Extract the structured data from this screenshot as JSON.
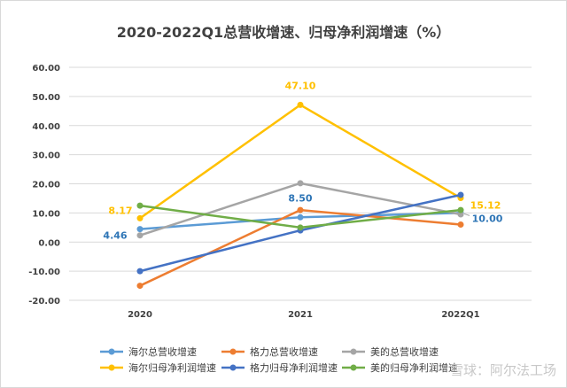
{
  "chart_data": {
    "type": "line",
    "title": "2020-2022Q1总营收增速、归母净利润增速（%）",
    "categories": [
      "2020",
      "2021",
      "2022Q1"
    ],
    "ylim": [
      -20,
      60
    ],
    "yticks": [
      "-20.00",
      "-10.00",
      "0.00",
      "10.00",
      "20.00",
      "30.00",
      "40.00",
      "50.00",
      "60.00"
    ],
    "grid": true,
    "legend_position": "bottom",
    "series": [
      {
        "name": "海尔总营收增速",
        "color": "#5b9bd5",
        "values": [
          4.46,
          8.5,
          10.0
        ]
      },
      {
        "name": "格力总营收增速",
        "color": "#ed7d31",
        "values": [
          -15.0,
          11.0,
          6.0
        ]
      },
      {
        "name": "美的总营收增速",
        "color": "#a5a5a5",
        "values": [
          2.3,
          20.2,
          9.5
        ]
      },
      {
        "name": "海尔归母净利润增速",
        "color": "#ffc000",
        "values": [
          8.17,
          47.1,
          15.12
        ]
      },
      {
        "name": "格力归母净利润增速",
        "color": "#4472c4",
        "values": [
          -10.0,
          4.0,
          16.2
        ]
      },
      {
        "name": "美的归母净利润增速",
        "color": "#70ad47",
        "values": [
          12.5,
          5.0,
          11.0
        ]
      }
    ],
    "annotations": [
      {
        "text": "8.17",
        "series": 3,
        "point": 0,
        "color": "#ffc000"
      },
      {
        "text": "4.46",
        "series": 0,
        "point": 0,
        "color": "#2e75b6"
      },
      {
        "text": "47.10",
        "series": 3,
        "point": 1,
        "color": "#ffc000"
      },
      {
        "text": "8.50",
        "series": 0,
        "point": 1,
        "color": "#2e75b6"
      },
      {
        "text": "15.12",
        "series": 3,
        "point": 2,
        "color": "#ffc000"
      },
      {
        "text": "10.00",
        "series": 0,
        "point": 2,
        "color": "#2e75b6"
      }
    ]
  },
  "watermark": "雪球：阿尔法工场"
}
